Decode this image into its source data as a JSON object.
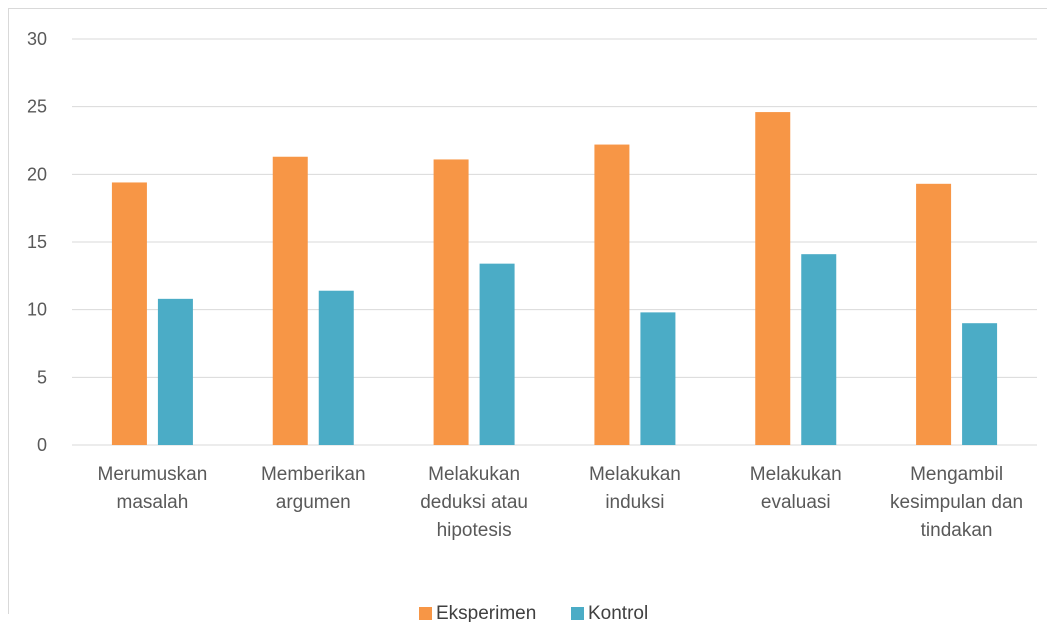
{
  "chart_data": {
    "type": "bar",
    "categories": [
      [
        "Merumuskan",
        "masalah"
      ],
      [
        "Memberikan",
        "argumen"
      ],
      [
        "Melakukan",
        "deduksi atau",
        "hipotesis"
      ],
      [
        "Melakukan",
        "induksi"
      ],
      [
        "Melakukan",
        "evaluasi"
      ],
      [
        "Mengambil",
        "kesimpulan dan",
        "tindakan"
      ]
    ],
    "series": [
      {
        "name": "Eksperimen",
        "color": "#f79646",
        "values": [
          19.4,
          21.3,
          21.1,
          22.2,
          24.6,
          19.3
        ]
      },
      {
        "name": "Kontrol",
        "color": "#4bacc6",
        "values": [
          10.8,
          11.4,
          13.4,
          9.8,
          14.1,
          9.0
        ]
      }
    ],
    "yticks": [
      "0",
      "5",
      "10",
      "15",
      "20",
      "25",
      "30"
    ],
    "ylim": [
      0,
      30
    ],
    "grid": true,
    "legend_position": "bottom"
  }
}
